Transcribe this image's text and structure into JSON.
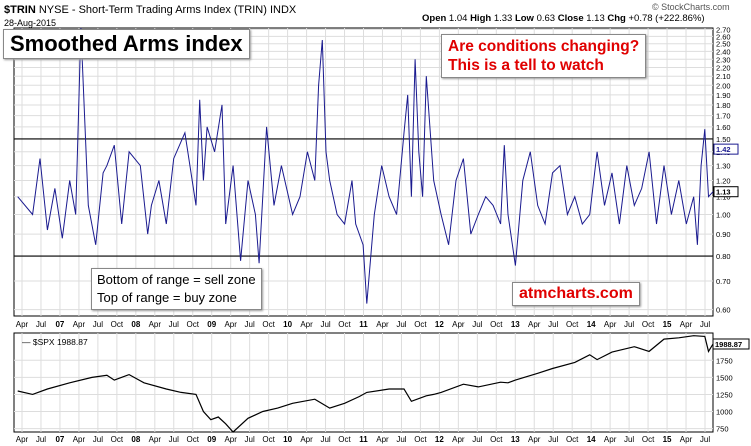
{
  "header": {
    "symbol": "$TRIN",
    "exchange": "NYSE",
    "name": "Short-Term Trading Arms Index (TRIN)",
    "index_tag": "INDX",
    "date": "28-Aug-2015",
    "open_label": "Open",
    "open_value": "1.04",
    "high_label": "High",
    "high_value": "1.33",
    "low_label": "Low",
    "low_value": "0.63",
    "close_label": "Close",
    "close_value": "1.13",
    "chg_label": "Chg",
    "chg_value": "+0.78 (+222.86%)",
    "credit": "© StockCharts.com"
  },
  "annotations": {
    "title": "Smoothed Arms index",
    "question_line1": "Are conditions changing?",
    "question_line2": "This is a tell to watch",
    "zones_line1": "Bottom of range = sell zone",
    "zones_line2": "Top of range = buy zone",
    "site": "atmcharts.com"
  },
  "lower_label": "— $SPX 1988.87",
  "colors": {
    "trin_line": "#1a1a8f",
    "spx_line": "#000000",
    "annotation_red": "#e00000",
    "grid": "#dddddd"
  },
  "chart_data": [
    {
      "type": "line",
      "series_label": "$TRIN",
      "scale": "log",
      "ylim": [
        0.58,
        2.72
      ],
      "yticks": [
        0.6,
        0.7,
        0.8,
        0.9,
        1.0,
        1.1,
        1.2,
        1.3,
        1.4,
        1.5,
        1.6,
        1.7,
        1.8,
        1.9,
        2.0,
        2.1,
        2.2,
        2.3,
        2.4,
        2.5,
        2.6,
        2.7
      ],
      "ytick_labels": [
        "0.60",
        "0.70",
        "0.80",
        "0.90",
        "1.00",
        "1.10",
        "1.20",
        "1.30",
        "1.40",
        "1.50",
        "1.60",
        "1.70",
        "1.80",
        "1.90",
        "2.00",
        "2.10",
        "2.20",
        "2.30",
        "2.40",
        "2.50",
        "2.60",
        "2.70"
      ],
      "xlim": [
        2006.25,
        2015.66
      ],
      "xtick_labels": [
        "Apr",
        "Jul",
        "07",
        "Apr",
        "Jul",
        "Oct",
        "08",
        "Apr",
        "Jul",
        "Oct",
        "09",
        "Apr",
        "Jul",
        "Oct",
        "10",
        "Apr",
        "Jul",
        "Oct",
        "11",
        "Apr",
        "Jul",
        "Oct",
        "12",
        "Apr",
        "Jul",
        "Oct",
        "13",
        "Apr",
        "Jul",
        "Oct",
        "14",
        "Apr",
        "Jul",
        "Oct",
        "15",
        "Apr",
        "Jul"
      ],
      "reference_lines": [
        1.5,
        0.8
      ],
      "current_value": "1.13",
      "marker_value": "1.42",
      "x": [
        2006.3,
        2006.5,
        2006.6,
        2006.7,
        2006.8,
        2006.9,
        2007.0,
        2007.08,
        2007.15,
        2007.25,
        2007.35,
        2007.45,
        2007.5,
        2007.6,
        2007.7,
        2007.8,
        2007.95,
        2008.05,
        2008.1,
        2008.2,
        2008.3,
        2008.4,
        2008.55,
        2008.7,
        2008.75,
        2008.8,
        2008.85,
        2008.95,
        2009.05,
        2009.1,
        2009.2,
        2009.3,
        2009.4,
        2009.5,
        2009.55,
        2009.65,
        2009.75,
        2009.85,
        2010.0,
        2010.1,
        2010.2,
        2010.3,
        2010.35,
        2010.4,
        2010.45,
        2010.5,
        2010.6,
        2010.7,
        2010.8,
        2010.85,
        2010.95,
        2011.0,
        2011.1,
        2011.2,
        2011.3,
        2011.4,
        2011.5,
        2011.55,
        2011.6,
        2011.65,
        2011.7,
        2011.75,
        2011.8,
        2011.9,
        2012.0,
        2012.1,
        2012.2,
        2012.3,
        2012.4,
        2012.5,
        2012.6,
        2012.7,
        2012.8,
        2012.85,
        2012.9,
        2013.0,
        2013.1,
        2013.2,
        2013.3,
        2013.4,
        2013.5,
        2013.6,
        2013.7,
        2013.8,
        2013.9,
        2014.0,
        2014.1,
        2014.2,
        2014.3,
        2014.4,
        2014.5,
        2014.6,
        2014.7,
        2014.8,
        2014.9,
        2015.0,
        2015.1,
        2015.2,
        2015.3,
        2015.4,
        2015.45,
        2015.5,
        2015.55,
        2015.6,
        2015.66
      ],
      "y": [
        1.1,
        1.0,
        1.35,
        0.92,
        1.15,
        0.88,
        1.2,
        1.0,
        2.72,
        1.05,
        0.85,
        1.25,
        1.3,
        1.45,
        0.95,
        1.4,
        1.3,
        0.9,
        1.05,
        1.2,
        0.95,
        1.35,
        1.55,
        1.05,
        1.85,
        1.2,
        1.6,
        1.4,
        1.8,
        0.95,
        1.3,
        0.78,
        1.2,
        1.0,
        0.77,
        1.6,
        1.05,
        1.3,
        1.0,
        1.1,
        1.4,
        1.2,
        2.0,
        2.55,
        1.4,
        1.2,
        1.0,
        0.95,
        1.2,
        0.95,
        0.85,
        0.62,
        1.0,
        1.3,
        1.1,
        1.0,
        1.55,
        1.9,
        1.1,
        2.3,
        1.4,
        1.1,
        2.1,
        1.2,
        1.0,
        0.85,
        1.2,
        1.35,
        0.9,
        1.0,
        1.1,
        1.05,
        0.95,
        1.45,
        1.0,
        0.76,
        1.2,
        1.4,
        1.05,
        0.95,
        1.25,
        1.3,
        1.0,
        1.1,
        0.95,
        1.0,
        1.4,
        1.05,
        1.25,
        0.95,
        1.3,
        1.05,
        1.15,
        1.4,
        0.95,
        1.3,
        1.0,
        1.2,
        0.95,
        1.1,
        0.85,
        1.3,
        1.58,
        1.1,
        1.13
      ]
    },
    {
      "type": "line",
      "series_label": "$SPX",
      "ylim": [
        700,
        2150
      ],
      "yticks": [
        750,
        1000,
        1250,
        1500,
        1750
      ],
      "ytick_labels": [
        "750",
        "1000",
        "1250",
        "1500",
        "1750"
      ],
      "xlim": [
        2006.25,
        2015.66
      ],
      "xtick_labels": [
        "Apr",
        "Jul",
        "07",
        "Apr",
        "Jul",
        "Oct",
        "08",
        "Apr",
        "Jul",
        "Oct",
        "09",
        "Apr",
        "Jul",
        "Oct",
        "10",
        "Apr",
        "Jul",
        "Oct",
        "11",
        "Apr",
        "Jul",
        "Oct",
        "12",
        "Apr",
        "Jul",
        "Oct",
        "13",
        "Apr",
        "Jul",
        "Oct",
        "14",
        "Apr",
        "Jul",
        "Oct",
        "15",
        "Apr",
        "Jul"
      ],
      "current_value": "1988.87",
      "x": [
        2006.3,
        2006.5,
        2006.7,
        2007.0,
        2007.3,
        2007.5,
        2007.6,
        2007.8,
        2008.0,
        2008.3,
        2008.5,
        2008.7,
        2008.8,
        2008.9,
        2009.0,
        2009.1,
        2009.2,
        2009.4,
        2009.6,
        2009.8,
        2010.0,
        2010.3,
        2010.5,
        2010.7,
        2010.9,
        2011.0,
        2011.3,
        2011.5,
        2011.6,
        2011.8,
        2011.9,
        2012.0,
        2012.3,
        2012.5,
        2012.8,
        2012.9,
        2013.0,
        2013.3,
        2013.5,
        2013.8,
        2014.0,
        2014.1,
        2014.3,
        2014.6,
        2014.8,
        2015.0,
        2015.2,
        2015.4,
        2015.55,
        2015.6,
        2015.66
      ],
      "y": [
        1300,
        1250,
        1330,
        1420,
        1500,
        1530,
        1460,
        1540,
        1420,
        1330,
        1280,
        1250,
        1000,
        880,
        920,
        820,
        700,
        900,
        1000,
        1050,
        1120,
        1180,
        1050,
        1120,
        1220,
        1280,
        1330,
        1330,
        1150,
        1230,
        1250,
        1280,
        1400,
        1360,
        1430,
        1420,
        1460,
        1560,
        1630,
        1720,
        1830,
        1760,
        1870,
        1950,
        1880,
        2060,
        2080,
        2110,
        2100,
        1880,
        1989
      ]
    }
  ]
}
